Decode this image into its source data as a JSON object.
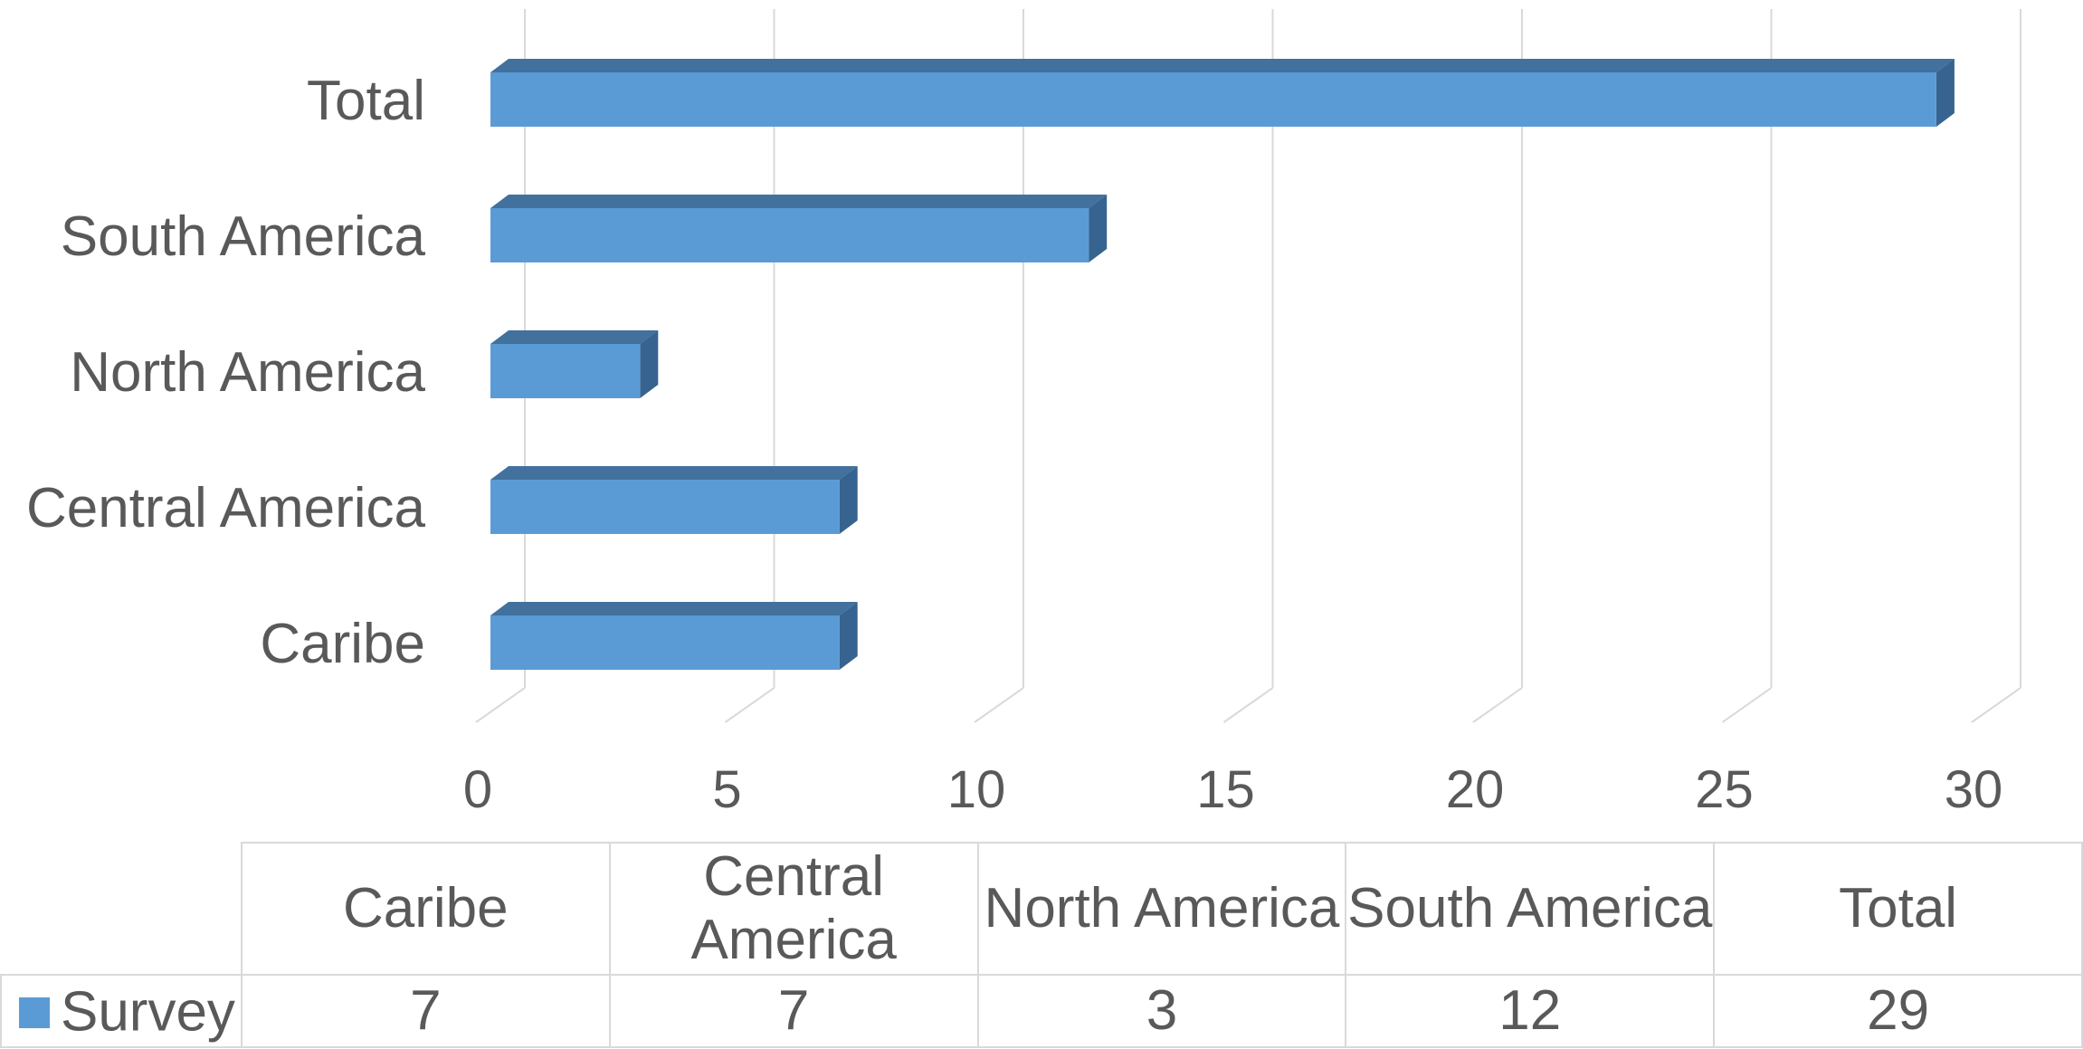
{
  "chart_data": {
    "type": "bar",
    "orientation": "horizontal",
    "three_d": true,
    "categories": [
      "Caribe",
      "Central America",
      "North America",
      "South America",
      "Total"
    ],
    "series": [
      {
        "name": "Survey",
        "values": [
          7,
          7,
          3,
          12,
          29
        ]
      }
    ],
    "xlim": [
      0,
      30
    ],
    "x_ticks": [
      "0",
      "5",
      "10",
      "15",
      "20",
      "25",
      "30"
    ],
    "grid": true,
    "legend": "data-table",
    "colors": {
      "bar_front": "#5b9bd5",
      "bar_top": "#41719c",
      "bar_side": "#36638f",
      "grid": "#d9d9d9",
      "text": "#595959"
    }
  },
  "table": {
    "headers": [
      "Caribe",
      "Central America",
      "North America",
      "South America",
      "Total"
    ],
    "row_label": "Survey",
    "cells": [
      "7",
      "7",
      "3",
      "12",
      "29"
    ]
  }
}
